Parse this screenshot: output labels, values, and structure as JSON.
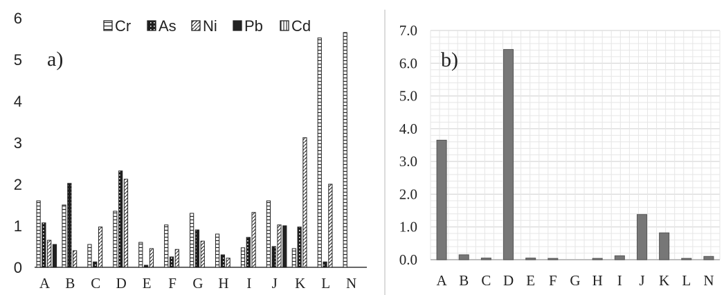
{
  "chart_data": [
    {
      "type": "bar",
      "panel_label": "a)",
      "categories": [
        "A",
        "B",
        "C",
        "D",
        "E",
        "F",
        "G",
        "H",
        "I",
        "J",
        "K",
        "L",
        "N"
      ],
      "ylim": [
        0,
        6
      ],
      "yticks": [
        "0",
        "1",
        "2",
        "3",
        "4",
        "5",
        "6"
      ],
      "legend_position": "top",
      "series": [
        {
          "name": "Cr",
          "pattern": "horizontal-lines",
          "values": [
            1.6,
            1.5,
            0.55,
            1.35,
            0.6,
            1.02,
            1.3,
            0.8,
            0.47,
            1.6,
            0.45,
            5.52,
            5.65
          ]
        },
        {
          "name": "As",
          "pattern": "dotted-dark",
          "values": [
            1.07,
            2.02,
            0.13,
            2.32,
            0.05,
            0.25,
            0.9,
            0.3,
            0.72,
            0.5,
            0.97,
            0.13,
            null
          ]
        },
        {
          "name": "Ni",
          "pattern": "diagonal",
          "values": [
            0.65,
            0.4,
            0.97,
            2.12,
            0.45,
            0.43,
            0.63,
            0.22,
            1.32,
            1.02,
            3.12,
            2.0,
            null
          ]
        },
        {
          "name": "Pb",
          "pattern": "dark",
          "values": [
            0.55,
            null,
            null,
            null,
            null,
            null,
            null,
            null,
            null,
            1.0,
            null,
            null,
            null
          ]
        },
        {
          "name": "Cd",
          "pattern": "vertical-lines",
          "values": [
            null,
            null,
            null,
            null,
            null,
            null,
            null,
            null,
            null,
            null,
            null,
            null,
            null
          ]
        }
      ]
    },
    {
      "type": "bar",
      "panel_label": "b)",
      "categories": [
        "A",
        "B",
        "C",
        "D",
        "E",
        "F",
        "G",
        "H",
        "I",
        "J",
        "K",
        "L",
        "N"
      ],
      "ylim": [
        0,
        7
      ],
      "yticks": [
        "0.0",
        "1.0",
        "2.0",
        "3.0",
        "4.0",
        "5.0",
        "6.0",
        "7.0"
      ],
      "grid": true,
      "series": [
        {
          "values": [
            3.65,
            0.15,
            0.05,
            6.42,
            0.05,
            0.04,
            0.0,
            0.04,
            0.12,
            1.38,
            0.82,
            0.04,
            0.1
          ]
        }
      ],
      "bar_color": "#777777"
    }
  ]
}
